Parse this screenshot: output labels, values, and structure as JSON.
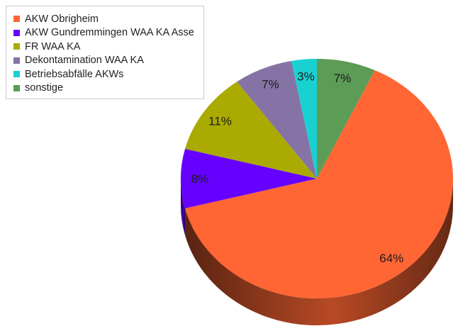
{
  "chart_data": {
    "type": "pie",
    "style": "3d",
    "start_angle_deg": 90,
    "direction": "clockwise",
    "legend_position": "top-left",
    "series": [
      {
        "name": "AKW Obrigheim",
        "value": 64,
        "label": "64%",
        "color": "#ff6633"
      },
      {
        "name": "AKW Gundremmingen WAA KA Asse",
        "value": 8,
        "label": "8%",
        "color": "#6600ff"
      },
      {
        "name": "FR WAA KA",
        "value": 11,
        "label": "11%",
        "color": "#aaaa00"
      },
      {
        "name": "Dekontamination WAA KA",
        "value": 7,
        "label": "7%",
        "color": "#8573a6"
      },
      {
        "name": "Betriebsabfälle AKWs",
        "value": 3,
        "label": "3%",
        "color": "#1ad1d1"
      },
      {
        "name": "sonstige",
        "value": 7,
        "label": "7%",
        "color": "#5c9c56"
      }
    ],
    "display_order": [
      5,
      0,
      1,
      2,
      3,
      4
    ]
  }
}
